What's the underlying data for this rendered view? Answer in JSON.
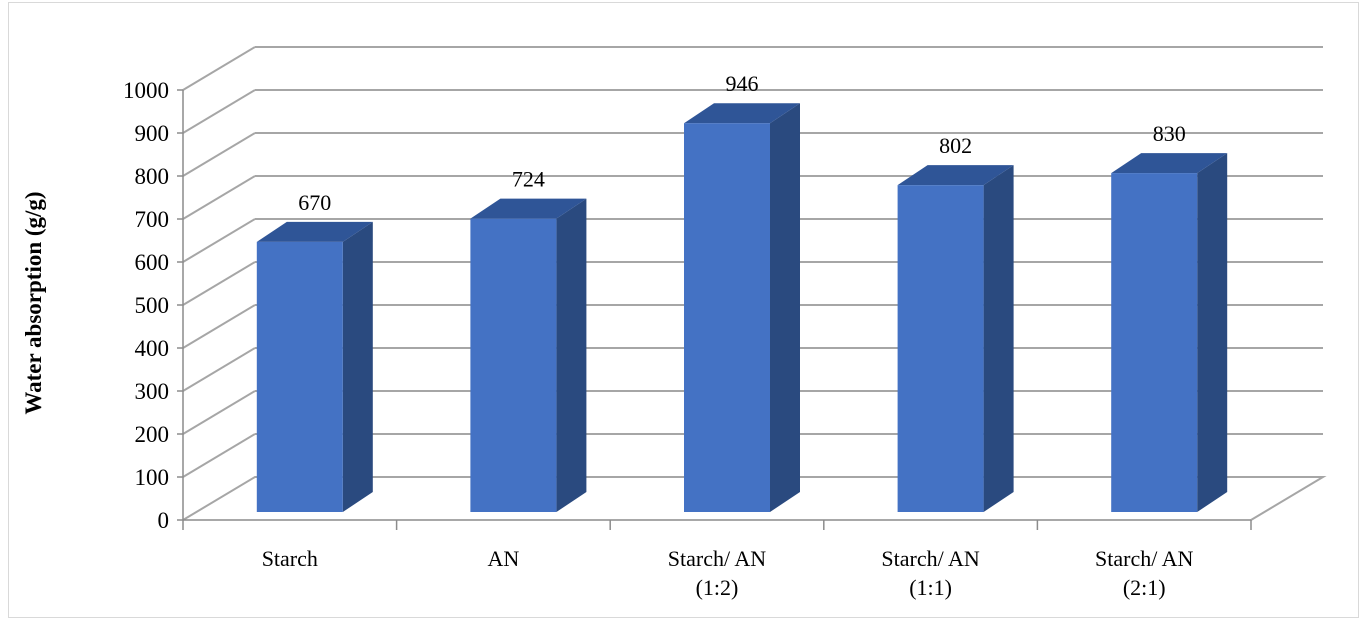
{
  "chart_data": {
    "type": "bar",
    "style": "3d-column",
    "title": "",
    "xlabel": "",
    "ylabel": "Water absorption (g/g)",
    "categories": [
      [
        "Starch"
      ],
      [
        "AN"
      ],
      [
        "Starch/ AN",
        "(1:2)"
      ],
      [
        "Starch/ AN",
        "(1:1)"
      ],
      [
        "Starch/ AN",
        "(2:1)"
      ]
    ],
    "values": [
      670,
      724,
      946,
      802,
      830
    ],
    "ylim": [
      0,
      1000
    ],
    "yticks": [
      0,
      100,
      200,
      300,
      400,
      500,
      600,
      700,
      800,
      900,
      1000
    ],
    "grid": true,
    "legend": "none",
    "colors": {
      "bar_front": "#4472c4",
      "bar_top": "#2f5597",
      "bar_side": "#2a4a7f",
      "grid": "#a6a6a6",
      "axis": "#8c8c8c"
    }
  }
}
